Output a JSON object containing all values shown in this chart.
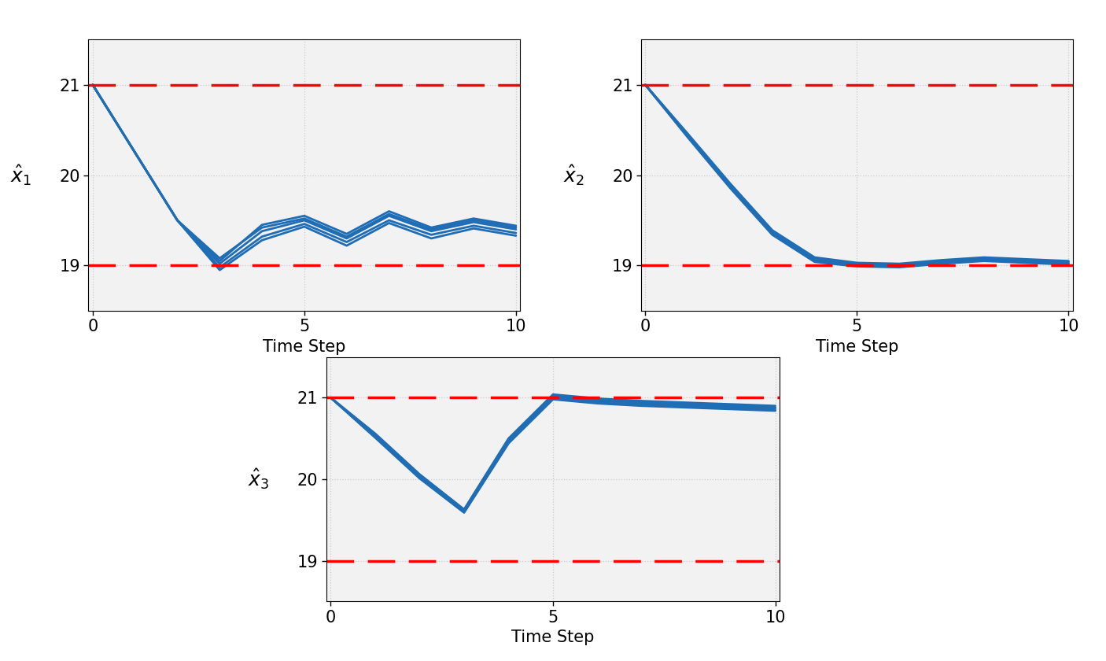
{
  "background_color": "#ffffff",
  "line_color": "#1f6db5",
  "dashed_color": "#ff0000",
  "dashed_level_upper": 21,
  "dashed_level_lower": 19,
  "ylim": [
    18.5,
    21.5
  ],
  "xlim": [
    -0.1,
    10.1
  ],
  "xticks": [
    0,
    5,
    10
  ],
  "yticks": [
    19,
    20,
    21
  ],
  "xlabel": "Time Step",
  "ylabels": [
    "$\\hat{x}_1$",
    "$\\hat{x}_2$",
    "$\\hat{x}_3$"
  ],
  "subplot_bg": "#f2f2f2",
  "plot1_trajectories": [
    [
      21.0,
      20.25,
      19.5,
      19.05,
      19.45,
      19.55,
      19.35,
      19.6,
      19.42,
      19.52,
      19.44
    ],
    [
      21.0,
      20.25,
      19.5,
      19.02,
      19.38,
      19.5,
      19.3,
      19.55,
      19.38,
      19.48,
      19.4
    ],
    [
      21.0,
      20.25,
      19.5,
      18.98,
      19.32,
      19.46,
      19.26,
      19.5,
      19.34,
      19.44,
      19.36
    ],
    [
      21.0,
      20.25,
      19.5,
      19.08,
      19.42,
      19.52,
      19.32,
      19.57,
      19.4,
      19.5,
      19.42
    ],
    [
      21.0,
      20.25,
      19.5,
      18.95,
      19.28,
      19.43,
      19.22,
      19.47,
      19.3,
      19.41,
      19.33
    ]
  ],
  "plot2_trajectories": [
    [
      21.0,
      20.45,
      19.9,
      19.38,
      19.08,
      19.02,
      19.01,
      19.05,
      19.08,
      19.06,
      19.04
    ],
    [
      21.0,
      20.43,
      19.87,
      19.35,
      19.05,
      19.0,
      18.99,
      19.03,
      19.06,
      19.04,
      19.02
    ],
    [
      21.0,
      20.44,
      19.88,
      19.36,
      19.06,
      19.01,
      19.0,
      19.04,
      19.07,
      19.05,
      19.03
    ],
    [
      21.0,
      20.42,
      19.86,
      19.34,
      19.04,
      18.99,
      18.98,
      19.02,
      19.05,
      19.03,
      19.01
    ],
    [
      21.0,
      20.46,
      19.91,
      19.39,
      19.09,
      19.03,
      19.02,
      19.06,
      19.09,
      19.07,
      19.05
    ]
  ],
  "plot3_trajectories": [
    [
      21.0,
      20.55,
      20.05,
      19.62,
      20.48,
      21.02,
      20.97,
      20.94,
      20.92,
      20.9,
      20.88
    ],
    [
      21.0,
      20.52,
      20.02,
      19.6,
      20.45,
      20.99,
      20.94,
      20.91,
      20.89,
      20.87,
      20.85
    ],
    [
      21.0,
      20.54,
      20.04,
      19.61,
      20.47,
      21.01,
      20.96,
      20.93,
      20.91,
      20.89,
      20.87
    ],
    [
      21.0,
      20.51,
      20.01,
      19.59,
      20.44,
      20.98,
      20.93,
      20.9,
      20.88,
      20.86,
      20.84
    ],
    [
      21.0,
      20.56,
      20.06,
      19.63,
      20.5,
      21.04,
      20.99,
      20.96,
      20.94,
      20.92,
      20.9
    ]
  ]
}
